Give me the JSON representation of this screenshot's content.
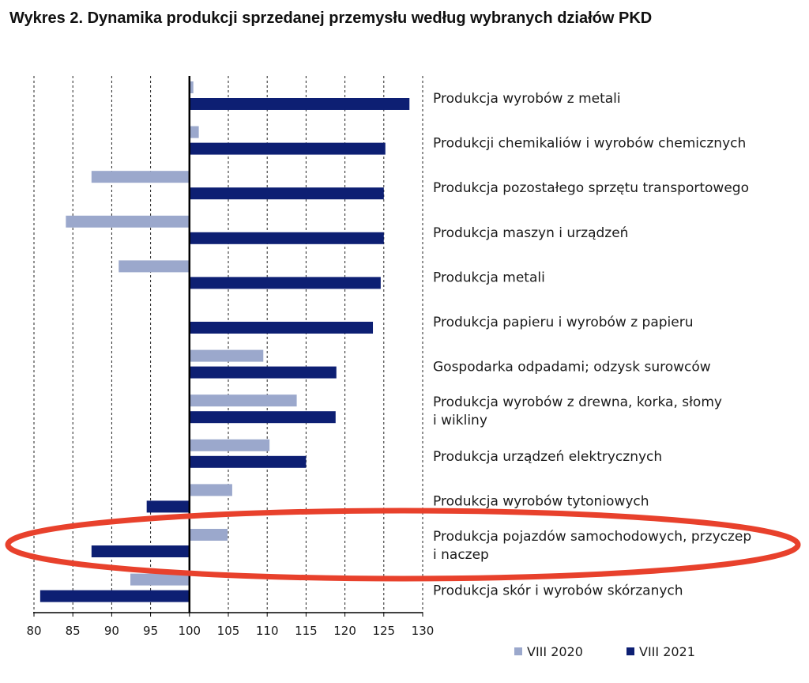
{
  "title": "Wykres 2. Dynamika produkcji sprzedanej przemysłu według wybranych działów PKD",
  "chart_data": {
    "type": "bar",
    "orientation": "horizontal",
    "baseline": 100,
    "xlim": [
      80,
      130
    ],
    "xticks": [
      80,
      85,
      90,
      95,
      100,
      105,
      110,
      115,
      120,
      125,
      130
    ],
    "grid": "vertical dashed",
    "legend_position": "bottom-right",
    "categories": [
      [
        "Produkcja wyrobów z metali"
      ],
      [
        "Produkcji chemikaliów i wyrobów chemicznych"
      ],
      [
        "Produkcja pozostałego sprzętu transportowego"
      ],
      [
        "Produkcja maszyn i urządzeń"
      ],
      [
        "Produkcja metali"
      ],
      [
        "Produkcja papieru i wyrobów z papieru"
      ],
      [
        "Gospodarka odpadami; odzysk surowców"
      ],
      [
        "Produkcja wyrobów z drewna, korka, słomy",
        "i wikliny"
      ],
      [
        "Produkcja urządzeń elektrycznych"
      ],
      [
        "Produkcja wyrobów tytoniowych"
      ],
      [
        "Produkcja pojazdów samochodowych, przyczep",
        "i naczep"
      ],
      [
        "Produkcja skór i wyrobów skórzanych"
      ]
    ],
    "series": [
      {
        "name": "VIII 2020",
        "color": "#9ba8cc",
        "values": [
          100.5,
          101.2,
          87.4,
          84.1,
          90.9,
          100.0,
          109.5,
          113.8,
          110.3,
          105.5,
          104.9,
          92.4
        ]
      },
      {
        "name": "VIII 2021",
        "color": "#0d1f73",
        "values": [
          128.3,
          125.2,
          125.0,
          125.0,
          124.6,
          123.6,
          118.9,
          118.8,
          115.0,
          94.5,
          87.4,
          80.8
        ]
      }
    ]
  },
  "annotation": {
    "type": "ellipse-highlight",
    "color": "#e8412c",
    "target_category": "Produkcja pojazdów samochodowych, przyczep"
  }
}
